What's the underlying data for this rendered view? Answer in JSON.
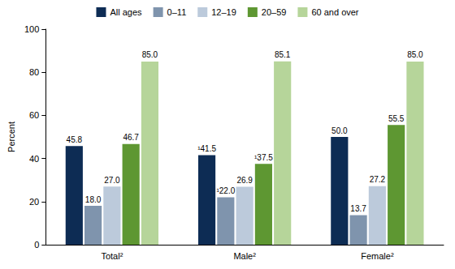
{
  "chart_data": {
    "type": "bar",
    "y_label": "Percent",
    "categories": [
      "Total²",
      "Male²",
      "Female²"
    ],
    "series": [
      {
        "name": "All ages",
        "color": "#0d2c54",
        "values": [
          45.8,
          41.5,
          50.0
        ],
        "value_labels": [
          "45.8",
          "¹41.5",
          "50.0"
        ]
      },
      {
        "name": "0–11",
        "color": "#7f94ad",
        "values": [
          18.0,
          22.0,
          13.7
        ],
        "value_labels": [
          "18.0",
          "¹22.0",
          "13.7"
        ]
      },
      {
        "name": "12–19",
        "color": "#bccadb",
        "values": [
          27.0,
          26.9,
          27.2
        ],
        "value_labels": [
          "27.0",
          "26.9",
          "27.2"
        ]
      },
      {
        "name": "20–59",
        "color": "#5e9732",
        "values": [
          46.7,
          37.5,
          55.5
        ],
        "value_labels": [
          "46.7",
          "¹37.5",
          "55.5"
        ]
      },
      {
        "name": "60 and over",
        "color": "#b6d59a",
        "values": [
          85.0,
          85.1,
          85.0
        ],
        "value_labels": [
          "85.0",
          "85.1",
          "85.0"
        ]
      }
    ],
    "ylim": [
      0,
      100
    ],
    "yticks": [
      0,
      20,
      40,
      60,
      80,
      100
    ],
    "grid": false,
    "legend": "top",
    "data_labels": true
  }
}
